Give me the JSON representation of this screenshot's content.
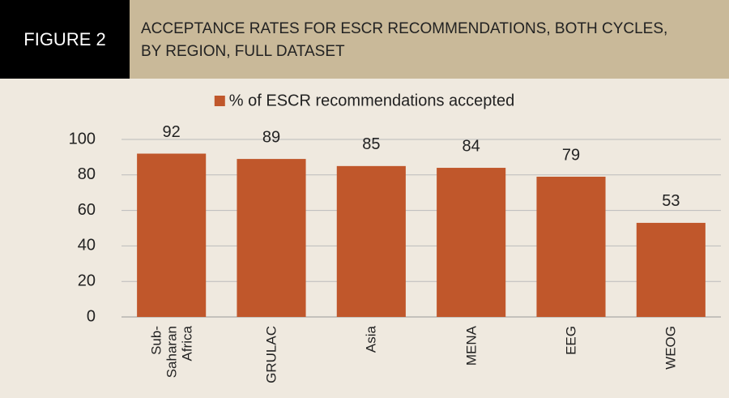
{
  "figure_label": "FIGURE 2",
  "chart_data": {
    "type": "bar",
    "title": "ACCEPTANCE RATES FOR ESCR RECOMMENDATIONS, BOTH CYCLES, BY REGION, FULL DATASET",
    "categories": [
      "Sub-Saharan Africa",
      "GRULAC",
      "Asia",
      "MENA",
      "EEG",
      "WEOG"
    ],
    "series": [
      {
        "name": "% of ESCR recommendations accepted",
        "color": "#c0572b",
        "values": [
          92,
          89,
          85,
          84,
          79,
          53
        ]
      }
    ],
    "ylim": [
      0,
      100
    ],
    "yticks": [
      0,
      20,
      40,
      60,
      80,
      100
    ],
    "grid": true,
    "legend": "top"
  }
}
